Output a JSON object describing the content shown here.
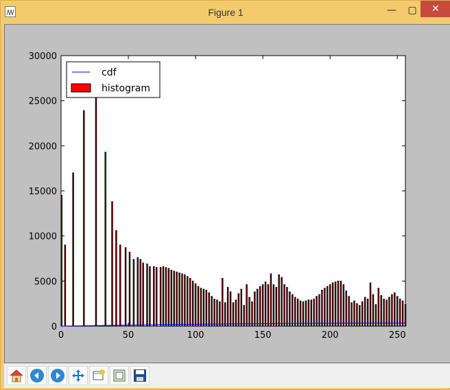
{
  "window": {
    "title": "Figure 1"
  },
  "chart_data": {
    "type": "bar",
    "title": "",
    "xlabel": "",
    "ylabel": "",
    "xlim": [
      0,
      256
    ],
    "ylim": [
      0,
      30000
    ],
    "xticks": [
      "0",
      "50",
      "100",
      "150",
      "200",
      "250"
    ],
    "yticks": [
      "0",
      "5000",
      "10000",
      "15000",
      "20000",
      "25000",
      "30000"
    ],
    "legend": {
      "placement": "top-left",
      "entries": [
        {
          "label": "cdf",
          "color": "#0000ff"
        },
        {
          "label": "histogram",
          "color": "#ff0000"
        }
      ]
    },
    "series": [
      {
        "name": "histogram",
        "color": "#ff0000",
        "x": [
          0,
          3,
          9,
          17,
          26,
          33,
          38,
          41,
          44,
          48,
          51,
          54,
          57,
          59,
          61,
          64,
          66,
          69,
          71,
          74,
          76,
          78,
          80,
          82,
          84,
          86,
          88,
          90,
          92,
          94,
          96,
          98,
          100,
          102,
          104,
          106,
          108,
          110,
          112,
          114,
          116,
          118,
          120,
          122,
          124,
          126,
          128,
          130,
          132,
          134,
          136,
          138,
          140,
          142,
          144,
          146,
          148,
          150,
          152,
          154,
          156,
          158,
          160,
          162,
          164,
          166,
          168,
          170,
          172,
          174,
          176,
          178,
          180,
          182,
          184,
          186,
          188,
          190,
          192,
          194,
          196,
          198,
          200,
          202,
          204,
          206,
          208,
          210,
          212,
          214,
          216,
          218,
          220,
          222,
          224,
          226,
          228,
          230,
          232,
          234,
          236,
          238,
          240,
          242,
          244,
          246,
          248,
          250,
          252,
          254,
          256
        ],
        "values": [
          14500,
          9000,
          17000,
          23900,
          26200,
          19300,
          13800,
          10600,
          9000,
          8700,
          8200,
          7400,
          7600,
          7400,
          7000,
          6900,
          6600,
          6600,
          6500,
          6500,
          6600,
          6500,
          6400,
          6200,
          6100,
          6000,
          5900,
          5800,
          5700,
          5500,
          5300,
          5000,
          4700,
          4400,
          4200,
          4100,
          4000,
          3700,
          3300,
          3000,
          2900,
          2700,
          5300,
          2600,
          4300,
          3800,
          2600,
          2900,
          3600,
          4100,
          2300,
          4600,
          3200,
          2700,
          3800,
          4100,
          4400,
          4600,
          4900,
          4600,
          5800,
          4600,
          4300,
          5700,
          5400,
          4600,
          4300,
          3800,
          3500,
          3200,
          3000,
          2800,
          2700,
          2800,
          2900,
          2900,
          3000,
          3300,
          3500,
          4000,
          4200,
          4400,
          4600,
          4800,
          4900,
          5000,
          5000,
          4600,
          3900,
          3300,
          2600,
          2800,
          2500,
          2300,
          2700,
          3200,
          3000,
          4800,
          3500,
          2400,
          4200,
          3400,
          3000,
          2900,
          3200,
          3500,
          3700,
          3300,
          3000,
          2800,
          2400
        ]
      },
      {
        "name": "cdf",
        "color": "#0000ff",
        "x": [
          0,
          25,
          50,
          75,
          100,
          125,
          150,
          175,
          200,
          225,
          256
        ],
        "values": [
          0,
          60,
          120,
          170,
          210,
          240,
          270,
          300,
          320,
          340,
          350
        ]
      }
    ]
  },
  "toolbar": {
    "home": "Home",
    "back": "Back",
    "forward": "Forward",
    "pan": "Pan",
    "zoom": "Zoom",
    "configure": "Configure subplots",
    "save": "Save"
  }
}
